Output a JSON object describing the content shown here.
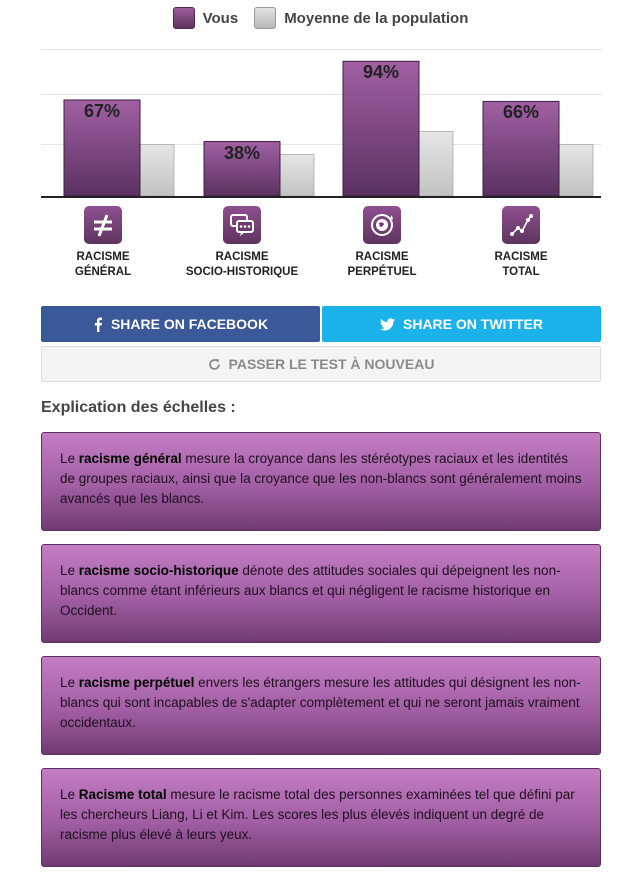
{
  "legend": {
    "you": "Vous",
    "average": "Moyenne de la population"
  },
  "colors": {
    "you": "#7a4580",
    "average": "#cccccc",
    "facebook": "#3b5998",
    "twitter": "#1ab2e8"
  },
  "chart_data": {
    "type": "bar",
    "categories": [
      "RACISME GÉNÉRAL",
      "RACISME SOCIO-HISTORIQUE",
      "RACISME PERPÉTUEL",
      "RACISME TOTAL"
    ],
    "series": [
      {
        "name": "Vous",
        "values": [
          67,
          38,
          94,
          66
        ]
      },
      {
        "name": "Moyenne de la population",
        "values": [
          36,
          29,
          45,
          36
        ]
      }
    ],
    "data_labels": [
      "67%",
      "38%",
      "94%",
      "66%"
    ],
    "ylim": [
      0,
      100
    ],
    "grid": true
  },
  "categories": [
    {
      "line1": "RACISME",
      "line2": "GÉNÉRAL",
      "icon": "not-equal-icon"
    },
    {
      "line1": "RACISME",
      "line2": "SOCIO-HISTORIQUE",
      "icon": "chat-bubbles-icon"
    },
    {
      "line1": "RACISME",
      "line2": "PERPÉTUEL",
      "icon": "globe-cycle-icon"
    },
    {
      "line1": "RACISME",
      "line2": "TOTAL",
      "icon": "network-graph-icon"
    }
  ],
  "buttons": {
    "facebook": "SHARE ON FACEBOOK",
    "twitter": "SHARE ON TWITTER",
    "retake": "PASSER LE TEST À NOUVEAU"
  },
  "explanation": {
    "title": "Explication des échelles :",
    "cards": [
      {
        "pre": "Le ",
        "term": "racisme général",
        "post": " mesure la croyance dans les stéréotypes raciaux et les identités de groupes raciaux, ainsi que la croyance que les non-blancs sont généralement moins avancés que les blancs."
      },
      {
        "pre": "Le ",
        "term": "racisme socio-historique",
        "post": " dénote des attitudes sociales qui dépeignent les non-blancs comme étant inférieurs aux blancs et qui négligent le racisme historique en Occident."
      },
      {
        "pre": "Le ",
        "term": "racisme perpétuel",
        "post": " envers les étrangers mesure les attitudes qui désignent les non-blancs qui sont incapables de s'adapter complètement et qui ne seront jamais vraiment occidentaux."
      },
      {
        "pre": "Le ",
        "term": "Racisme total",
        "post": " mesure le racisme total des personnes examinées tel que défini par les chercheurs Liang, Li et Kim. Les scores les plus élevés indiquent un degré de racisme plus élevé à leurs yeux."
      }
    ]
  }
}
